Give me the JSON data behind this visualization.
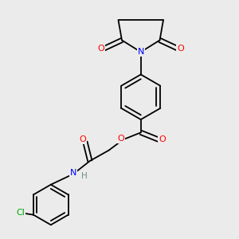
{
  "background_color": "#ebebeb",
  "bond_color": "#000000",
  "atom_colors": {
    "O": "#ff0000",
    "N_blue": "#0000ff",
    "N_gray": "#6b8e8e",
    "Cl": "#00aa00",
    "H": "#6b8e8e"
  },
  "figsize": [
    3.0,
    3.0
  ],
  "dpi": 100
}
